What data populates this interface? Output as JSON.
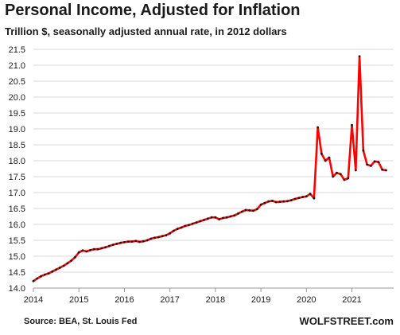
{
  "chart_data": {
    "type": "line",
    "title": "Personal Income, Adjusted for Inflation",
    "subtitle": "Trillion $, seasonally adjusted annual rate, in 2012 dollars",
    "xlabel": "",
    "ylabel": "",
    "x_tick_labels": [
      "2014",
      "2015",
      "2016",
      "2017",
      "2018",
      "2019",
      "2020",
      "2021"
    ],
    "y_tick_labels": [
      "14.0",
      "14.5",
      "15.0",
      "15.5",
      "16.0",
      "16.5",
      "17.0",
      "17.5",
      "18.0",
      "18.5",
      "19.0",
      "19.5",
      "20.0",
      "20.5",
      "21.0",
      "21.5"
    ],
    "xlim": [
      "2014-01",
      "2021-12"
    ],
    "ylim": [
      14.0,
      21.5
    ],
    "grid": true,
    "legend": "none",
    "series": [
      {
        "color": "#ff0000",
        "marker_color": "#1a1a1a",
        "x": [
          "2014-01",
          "2014-02",
          "2014-03",
          "2014-04",
          "2014-05",
          "2014-06",
          "2014-07",
          "2014-08",
          "2014-09",
          "2014-10",
          "2014-11",
          "2014-12",
          "2015-01",
          "2015-02",
          "2015-03",
          "2015-04",
          "2015-05",
          "2015-06",
          "2015-07",
          "2015-08",
          "2015-09",
          "2015-10",
          "2015-11",
          "2015-12",
          "2016-01",
          "2016-02",
          "2016-03",
          "2016-04",
          "2016-05",
          "2016-06",
          "2016-07",
          "2016-08",
          "2016-09",
          "2016-10",
          "2016-11",
          "2016-12",
          "2017-01",
          "2017-02",
          "2017-03",
          "2017-04",
          "2017-05",
          "2017-06",
          "2017-07",
          "2017-08",
          "2017-09",
          "2017-10",
          "2017-11",
          "2017-12",
          "2018-01",
          "2018-02",
          "2018-03",
          "2018-04",
          "2018-05",
          "2018-06",
          "2018-07",
          "2018-08",
          "2018-09",
          "2018-10",
          "2018-11",
          "2018-12",
          "2019-01",
          "2019-02",
          "2019-03",
          "2019-04",
          "2019-05",
          "2019-06",
          "2019-07",
          "2019-08",
          "2019-09",
          "2019-10",
          "2019-11",
          "2019-12",
          "2020-01",
          "2020-02",
          "2020-03",
          "2020-04",
          "2020-05",
          "2020-06",
          "2020-07",
          "2020-08",
          "2020-09",
          "2020-10",
          "2020-11",
          "2020-12",
          "2021-01",
          "2021-02",
          "2021-03",
          "2021-04",
          "2021-05",
          "2021-06",
          "2021-07",
          "2021-08",
          "2021-09",
          "2021-10"
        ],
        "values": [
          14.22,
          14.3,
          14.37,
          14.42,
          14.46,
          14.52,
          14.58,
          14.64,
          14.7,
          14.78,
          14.86,
          14.97,
          15.12,
          15.18,
          15.15,
          15.19,
          15.22,
          15.22,
          15.25,
          15.28,
          15.32,
          15.36,
          15.39,
          15.42,
          15.44,
          15.46,
          15.46,
          15.48,
          15.45,
          15.47,
          15.5,
          15.55,
          15.58,
          15.6,
          15.63,
          15.66,
          15.72,
          15.8,
          15.86,
          15.9,
          15.95,
          15.98,
          16.02,
          16.06,
          16.1,
          16.14,
          16.18,
          16.22,
          16.22,
          16.16,
          16.2,
          16.22,
          16.25,
          16.28,
          16.34,
          16.4,
          16.45,
          16.44,
          16.43,
          16.48,
          16.62,
          16.67,
          16.72,
          16.74,
          16.7,
          16.71,
          16.72,
          16.73,
          16.76,
          16.8,
          16.83,
          16.86,
          16.88,
          16.96,
          16.82,
          19.05,
          18.22,
          18.0,
          18.1,
          17.5,
          17.62,
          17.58,
          17.4,
          17.45,
          19.12,
          17.7,
          21.28,
          18.32,
          17.88,
          17.84,
          17.98,
          17.96,
          17.72,
          17.7
        ]
      }
    ],
    "source": "Source: BEA, St. Louis Fed",
    "brand": "WOLFSTREET.com"
  }
}
